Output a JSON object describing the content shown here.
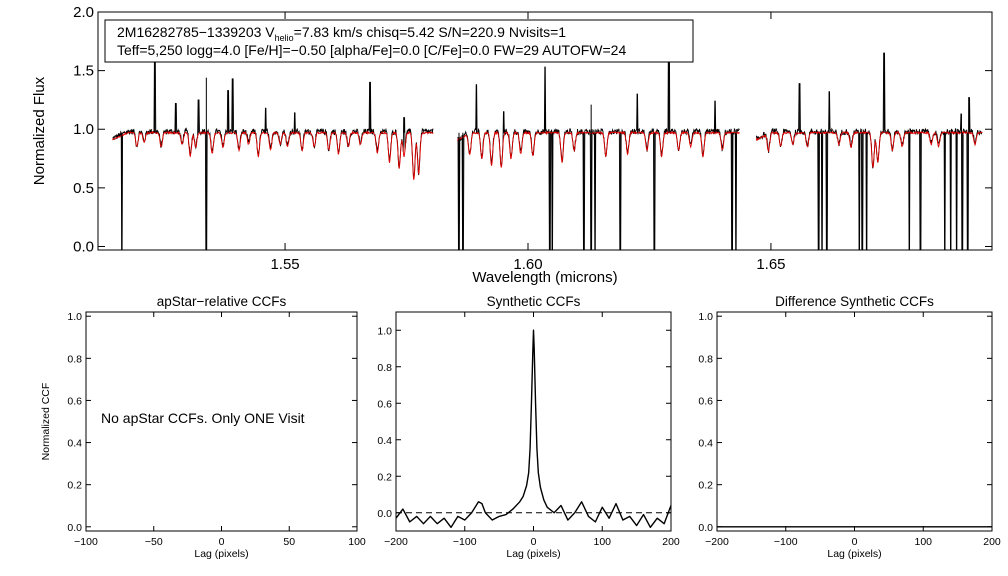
{
  "info_box": {
    "line1_pre": "2M16282785−1339203  V",
    "line1_sub": "helio",
    "line1_post": "=7.83 km/s  chisq=5.42  S/N=220.9  Nvisits=1",
    "line2": "Teff=5,250 logg=4.0 [Fe/H]=−0.50 [alpha/Fe]=0.0 [C/Fe]=0.0 FW=29 AUTOFW=24"
  },
  "chart_data": [
    {
      "type": "line",
      "xlabel": "Wavelength (microns)",
      "ylabel": "Normalized Flux",
      "xlim": [
        1.5115,
        1.6955
      ],
      "ylim": [
        -0.03,
        2.0
      ],
      "xticks": [
        {
          "value": 1.55,
          "label": "1.55"
        },
        {
          "value": 1.6,
          "label": "1.60"
        },
        {
          "value": 1.65,
          "label": "1.65"
        }
      ],
      "yticks": [
        {
          "value": 0.0,
          "label": "0.0"
        },
        {
          "value": 0.5,
          "label": "0.5"
        },
        {
          "value": 1.0,
          "label": "1.0"
        },
        {
          "value": 1.5,
          "label": "1.5"
        },
        {
          "value": 2.0,
          "label": "2.0"
        }
      ],
      "continuum": 0.97,
      "chips": [
        {
          "range": [
            1.5145,
            1.5805
          ]
        },
        {
          "range": [
            1.5855,
            1.6435
          ]
        },
        {
          "range": [
            1.647,
            1.6935
          ]
        }
      ],
      "series": [
        {
          "color": "#000000"
        },
        {
          "color": "#e00000"
        }
      ],
      "emission_spikes": [
        {
          "x": 1.5232,
          "y": 1.62
        },
        {
          "x": 1.5275,
          "y": 1.22
        },
        {
          "x": 1.5322,
          "y": 1.25
        },
        {
          "x": 1.5338,
          "y": 1.44
        },
        {
          "x": 1.5383,
          "y": 1.33
        },
        {
          "x": 1.5392,
          "y": 1.43
        },
        {
          "x": 1.546,
          "y": 1.18
        },
        {
          "x": 1.552,
          "y": 1.14
        },
        {
          "x": 1.5675,
          "y": 1.4
        },
        {
          "x": 1.5745,
          "y": 1.1
        },
        {
          "x": 1.5894,
          "y": 1.38
        },
        {
          "x": 1.595,
          "y": 1.15
        },
        {
          "x": 1.6035,
          "y": 1.53
        },
        {
          "x": 1.613,
          "y": 1.21
        },
        {
          "x": 1.6225,
          "y": 1.3
        },
        {
          "x": 1.629,
          "y": 1.92
        },
        {
          "x": 1.6385,
          "y": 1.24
        },
        {
          "x": 1.6559,
          "y": 1.39
        },
        {
          "x": 1.662,
          "y": 1.32
        },
        {
          "x": 1.6733,
          "y": 1.65
        },
        {
          "x": 1.6892,
          "y": 1.13
        },
        {
          "x": 1.6908,
          "y": 1.27
        }
      ],
      "drop_lines": [
        1.5164,
        1.5338,
        1.5858,
        1.5866,
        1.6045,
        1.605,
        1.6115,
        1.613,
        1.6138,
        1.619,
        1.626,
        1.642,
        1.6428,
        1.6598,
        1.6605,
        1.6615,
        1.6682,
        1.6688,
        1.6697,
        1.6785,
        1.6808,
        1.6858,
        1.687,
        1.6882,
        1.6894,
        1.6905
      ],
      "absorption_lines": [
        {
          "x": 1.5195,
          "d": 0.12
        },
        {
          "x": 1.521,
          "d": 0.08
        },
        {
          "x": 1.5245,
          "d": 0.12
        },
        {
          "x": 1.5288,
          "d": 0.1
        },
        {
          "x": 1.5305,
          "d": 0.2
        },
        {
          "x": 1.5316,
          "d": 0.12
        },
        {
          "x": 1.535,
          "d": 0.18
        },
        {
          "x": 1.5372,
          "d": 0.12
        },
        {
          "x": 1.5405,
          "d": 0.15
        },
        {
          "x": 1.5425,
          "d": 0.1
        },
        {
          "x": 1.5445,
          "d": 0.2
        },
        {
          "x": 1.547,
          "d": 0.15
        },
        {
          "x": 1.549,
          "d": 0.1
        },
        {
          "x": 1.5505,
          "d": 0.12
        },
        {
          "x": 1.5535,
          "d": 0.15
        },
        {
          "x": 1.556,
          "d": 0.12
        },
        {
          "x": 1.559,
          "d": 0.15
        },
        {
          "x": 1.561,
          "d": 0.18
        },
        {
          "x": 1.563,
          "d": 0.12
        },
        {
          "x": 1.5655,
          "d": 0.1
        },
        {
          "x": 1.569,
          "d": 0.17
        },
        {
          "x": 1.5715,
          "d": 0.25
        },
        {
          "x": 1.5735,
          "d": 0.3
        },
        {
          "x": 1.5745,
          "d": 0.2
        },
        {
          "x": 1.5765,
          "d": 0.4
        },
        {
          "x": 1.5775,
          "d": 0.35
        },
        {
          "x": 1.588,
          "d": 0.18
        },
        {
          "x": 1.5905,
          "d": 0.22
        },
        {
          "x": 1.5925,
          "d": 0.28
        },
        {
          "x": 1.5945,
          "d": 0.3
        },
        {
          "x": 1.5965,
          "d": 0.22
        },
        {
          "x": 1.5985,
          "d": 0.18
        },
        {
          "x": 1.601,
          "d": 0.2
        },
        {
          "x": 1.607,
          "d": 0.25
        },
        {
          "x": 1.6095,
          "d": 0.15
        },
        {
          "x": 1.616,
          "d": 0.2
        },
        {
          "x": 1.6205,
          "d": 0.18
        },
        {
          "x": 1.6245,
          "d": 0.15
        },
        {
          "x": 1.6275,
          "d": 0.2
        },
        {
          "x": 1.631,
          "d": 0.15
        },
        {
          "x": 1.6335,
          "d": 0.12
        },
        {
          "x": 1.636,
          "d": 0.2
        },
        {
          "x": 1.64,
          "d": 0.15
        },
        {
          "x": 1.6495,
          "d": 0.15
        },
        {
          "x": 1.652,
          "d": 0.12
        },
        {
          "x": 1.6545,
          "d": 0.1
        },
        {
          "x": 1.6575,
          "d": 0.12
        },
        {
          "x": 1.664,
          "d": 0.1
        },
        {
          "x": 1.6665,
          "d": 0.12
        },
        {
          "x": 1.671,
          "d": 0.3
        },
        {
          "x": 1.672,
          "d": 0.25
        },
        {
          "x": 1.675,
          "d": 0.15
        },
        {
          "x": 1.677,
          "d": 0.12
        },
        {
          "x": 1.683,
          "d": 0.1
        },
        {
          "x": 1.6845,
          "d": 0.12
        },
        {
          "x": 1.692,
          "d": 0.1
        }
      ]
    },
    {
      "type": "line",
      "title": "apStar−relative CCFs",
      "xlabel": "Lag (pixels)",
      "ylabel": "Normalized CCF",
      "xlim": [
        -100,
        100
      ],
      "ylim": [
        -0.02,
        1.02
      ],
      "xticks": [
        {
          "value": -100,
          "label": "−100"
        },
        {
          "value": -50,
          "label": "−50"
        },
        {
          "value": 0,
          "label": "0"
        },
        {
          "value": 50,
          "label": "50"
        },
        {
          "value": 100,
          "label": "100"
        }
      ],
      "yticks": [
        {
          "value": 0.0,
          "label": "0.0"
        },
        {
          "value": 0.2,
          "label": "0.2"
        },
        {
          "value": 0.4,
          "label": "0.4"
        },
        {
          "value": 0.6,
          "label": "0.6"
        },
        {
          "value": 0.8,
          "label": "0.8"
        },
        {
          "value": 1.0,
          "label": "1.0"
        }
      ],
      "annotation": "No apStar CCFs.  Only ONE Visit",
      "series": []
    },
    {
      "type": "line",
      "title": "Synthetic CCFs",
      "xlabel": "Lag (pixels)",
      "xlim": [
        -200,
        200
      ],
      "ylim": [
        -0.1,
        1.1
      ],
      "xticks": [
        {
          "value": -200,
          "label": "−200"
        },
        {
          "value": -100,
          "label": "−100"
        },
        {
          "value": 0,
          "label": "0"
        },
        {
          "value": 100,
          "label": "100"
        },
        {
          "value": 200,
          "label": "200"
        }
      ],
      "yticks": [
        {
          "value": 0.0,
          "label": "0.0"
        },
        {
          "value": 0.2,
          "label": "0.2"
        },
        {
          "value": 0.4,
          "label": "0.4"
        },
        {
          "value": 0.6,
          "label": "0.6"
        },
        {
          "value": 0.8,
          "label": "0.8"
        },
        {
          "value": 1.0,
          "label": "1.0"
        }
      ],
      "reference_line": {
        "y": 0.0,
        "style": "dashed"
      },
      "series": [
        {
          "color": "#000000",
          "x": [
            -200,
            -190,
            -180,
            -170,
            -160,
            -150,
            -140,
            -130,
            -120,
            -110,
            -100,
            -90,
            -80,
            -75,
            -70,
            -60,
            -50,
            -40,
            -30,
            -20,
            -15,
            -10,
            -7,
            -5,
            -3,
            -1,
            0,
            1,
            3,
            5,
            7,
            10,
            15,
            20,
            30,
            40,
            50,
            60,
            70,
            80,
            90,
            100,
            110,
            120,
            130,
            140,
            150,
            160,
            170,
            180,
            190,
            200
          ],
          "y": [
            -0.03,
            0.02,
            -0.05,
            -0.02,
            -0.06,
            -0.02,
            -0.06,
            -0.03,
            -0.08,
            -0.02,
            -0.04,
            0.0,
            0.06,
            0.05,
            0.0,
            -0.04,
            -0.02,
            -0.01,
            0.02,
            0.06,
            0.09,
            0.15,
            0.22,
            0.35,
            0.6,
            0.88,
            1.0,
            0.9,
            0.6,
            0.35,
            0.22,
            0.14,
            0.07,
            0.03,
            0.0,
            0.04,
            -0.04,
            0.0,
            0.06,
            -0.02,
            -0.05,
            0.03,
            -0.03,
            0.05,
            -0.04,
            -0.02,
            -0.07,
            -0.01,
            -0.08,
            -0.03,
            -0.06,
            0.04
          ]
        }
      ]
    },
    {
      "type": "line",
      "title": "Difference Synthetic CCFs",
      "xlabel": "Lag (pixels)",
      "xlim": [
        -200,
        200
      ],
      "ylim": [
        -0.02,
        1.02
      ],
      "xticks": [
        {
          "value": -200,
          "label": "−200"
        },
        {
          "value": -100,
          "label": "−100"
        },
        {
          "value": 0,
          "label": "0"
        },
        {
          "value": 100,
          "label": "100"
        },
        {
          "value": 200,
          "label": "200"
        }
      ],
      "yticks": [
        {
          "value": 0.0,
          "label": "0.0"
        },
        {
          "value": 0.2,
          "label": "0.2"
        },
        {
          "value": 0.4,
          "label": "0.4"
        },
        {
          "value": 0.6,
          "label": "0.6"
        },
        {
          "value": 0.8,
          "label": "0.8"
        },
        {
          "value": 1.0,
          "label": "1.0"
        }
      ],
      "series": [
        {
          "color": "#000000",
          "x": [
            -200,
            200
          ],
          "y": [
            0.0,
            0.0
          ]
        }
      ]
    }
  ]
}
